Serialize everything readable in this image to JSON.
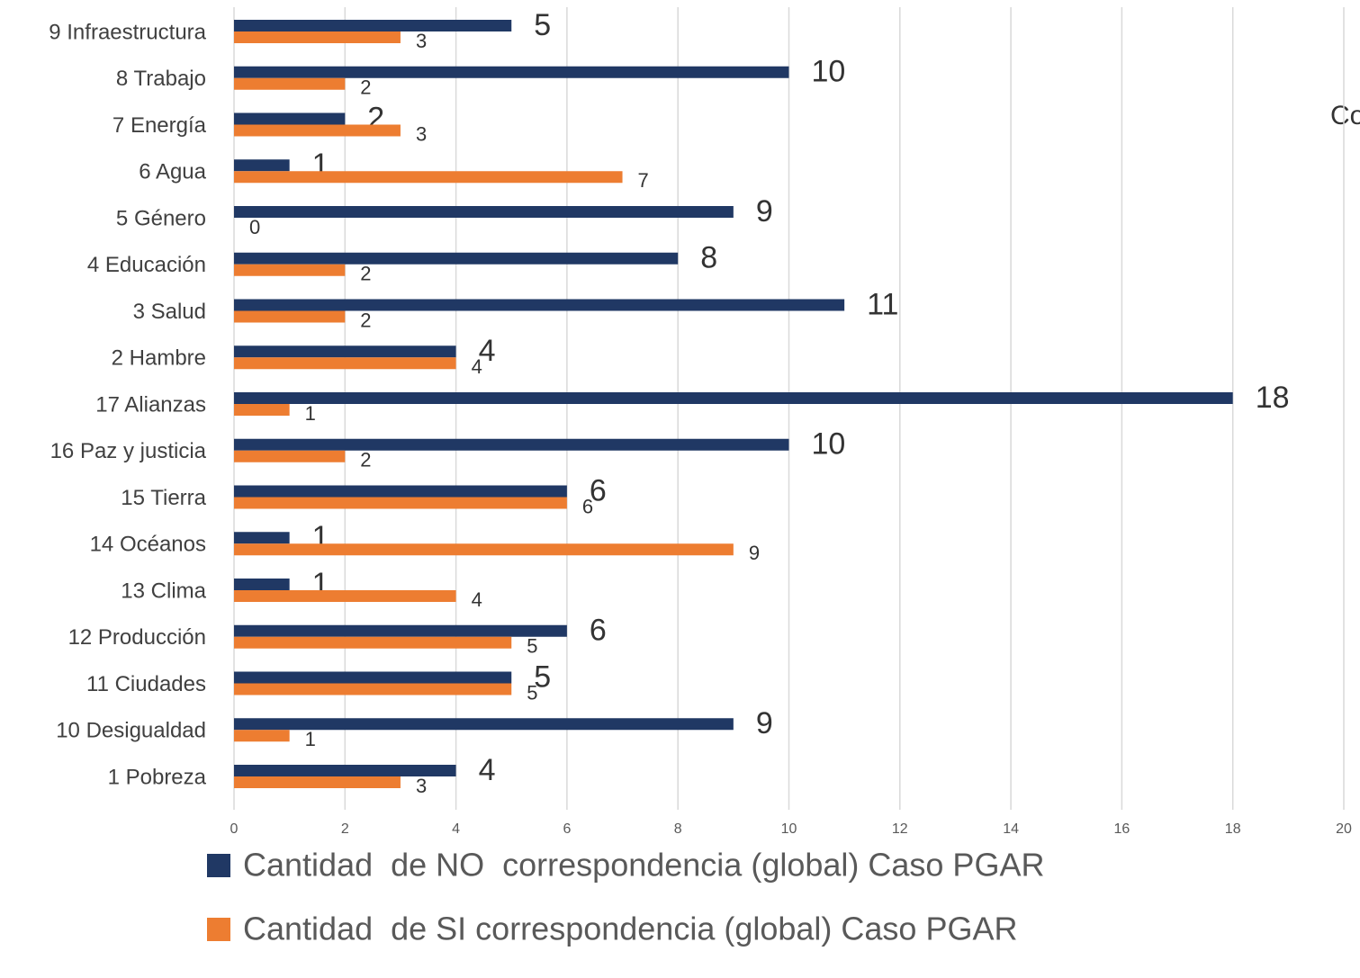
{
  "chart_data": {
    "type": "bar",
    "orientation": "horizontal",
    "annotation": "Co",
    "categories": [
      "9 Infraestructura",
      "8 Trabajo",
      "7 Energía",
      "6 Agua",
      "5 Género",
      "4 Educación",
      "3 Salud",
      "2 Hambre",
      "17 Alianzas",
      "16 Paz y justicia",
      "15 Tierra",
      "14 Océanos",
      "13 Clima",
      "12 Producción",
      "11 Ciudades",
      "10 Desigualdad",
      "1 Pobreza"
    ],
    "series": [
      {
        "name": "Cantidad  de NO  correspondencia (global) Caso PGAR",
        "color": "#203864",
        "values": [
          5,
          10,
          2,
          1,
          9,
          8,
          11,
          4,
          18,
          10,
          6,
          1,
          1,
          6,
          5,
          9,
          4
        ]
      },
      {
        "name": "Cantidad  de SI correspondencia (global) Caso PGAR",
        "color": "#ed7d31",
        "values": [
          3,
          2,
          3,
          7,
          0,
          2,
          2,
          4,
          1,
          2,
          6,
          9,
          4,
          5,
          5,
          1,
          3
        ]
      }
    ],
    "xlim": [
      0,
      20
    ],
    "xticks": [
      0,
      2,
      4,
      6,
      8,
      10,
      12,
      14,
      16,
      18,
      20
    ],
    "grid": true,
    "legend": "bottom"
  }
}
